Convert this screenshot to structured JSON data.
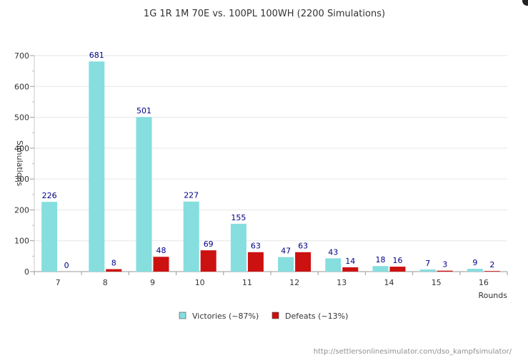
{
  "chart_data": {
    "type": "bar",
    "title": "1G 1R 1M 70E  vs. 100PL 100WH  (2200 Simulations)",
    "xlabel": "Rounds",
    "ylabel": "Simulations",
    "categories": [
      "7",
      "8",
      "9",
      "10",
      "11",
      "12",
      "13",
      "14",
      "15",
      "16"
    ],
    "ylim": [
      0,
      700
    ],
    "yticks": [
      0,
      100,
      200,
      300,
      400,
      500,
      600,
      700
    ],
    "grid": true,
    "legend_position": "bottom-center",
    "series": [
      {
        "name": "Victories (~87%)",
        "color": "#86dede",
        "values": [
          226,
          681,
          501,
          227,
          155,
          47,
          43,
          18,
          7,
          9
        ]
      },
      {
        "name": "Defeats (~13%)",
        "color": "#cc1111",
        "values": [
          0,
          8,
          48,
          69,
          63,
          63,
          14,
          16,
          3,
          2
        ]
      }
    ],
    "label_color": "#000088"
  },
  "footer": {
    "credit": "http://settlersonlinesimulator.com/dso_kampfsimulator/"
  }
}
